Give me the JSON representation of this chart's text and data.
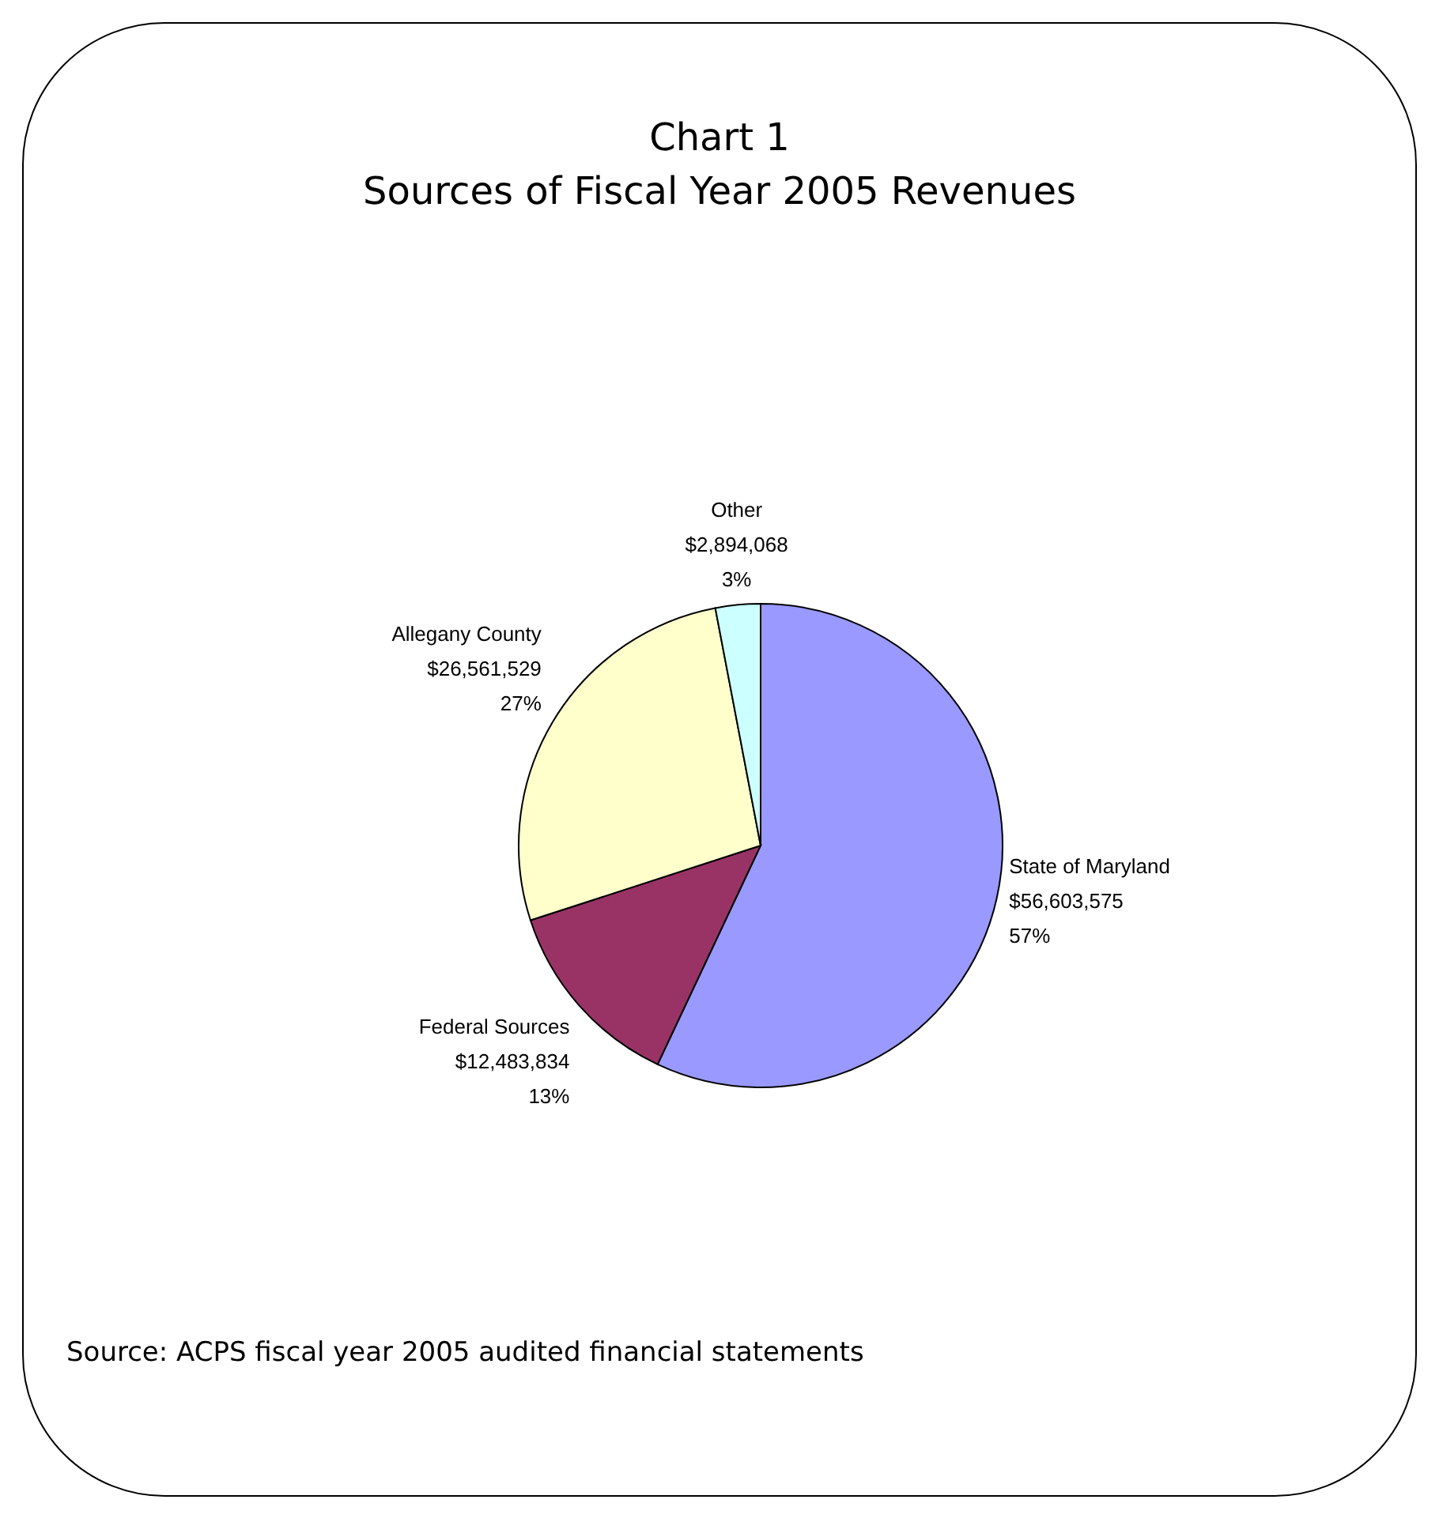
{
  "chart_data": {
    "type": "pie",
    "title": "Chart 1\nSources of Fiscal Year 2005 Revenues",
    "categories": [
      "State of Maryland",
      "Federal Sources",
      "Allegany County",
      "Other"
    ],
    "values": [
      57,
      13,
      27,
      3
    ],
    "colors": [
      "#9999ff",
      "#993366",
      "#ffffcc",
      "#ccffff"
    ],
    "value_labels": [
      "$56,603,575\n57%",
      "$12,483,834\n13%",
      "$26,561,529\n27%",
      "$2,894,068\n3%"
    ],
    "annotations": [
      "Source: ACPS fiscal year 2005 audited financial statements"
    ],
    "legend": false
  }
}
